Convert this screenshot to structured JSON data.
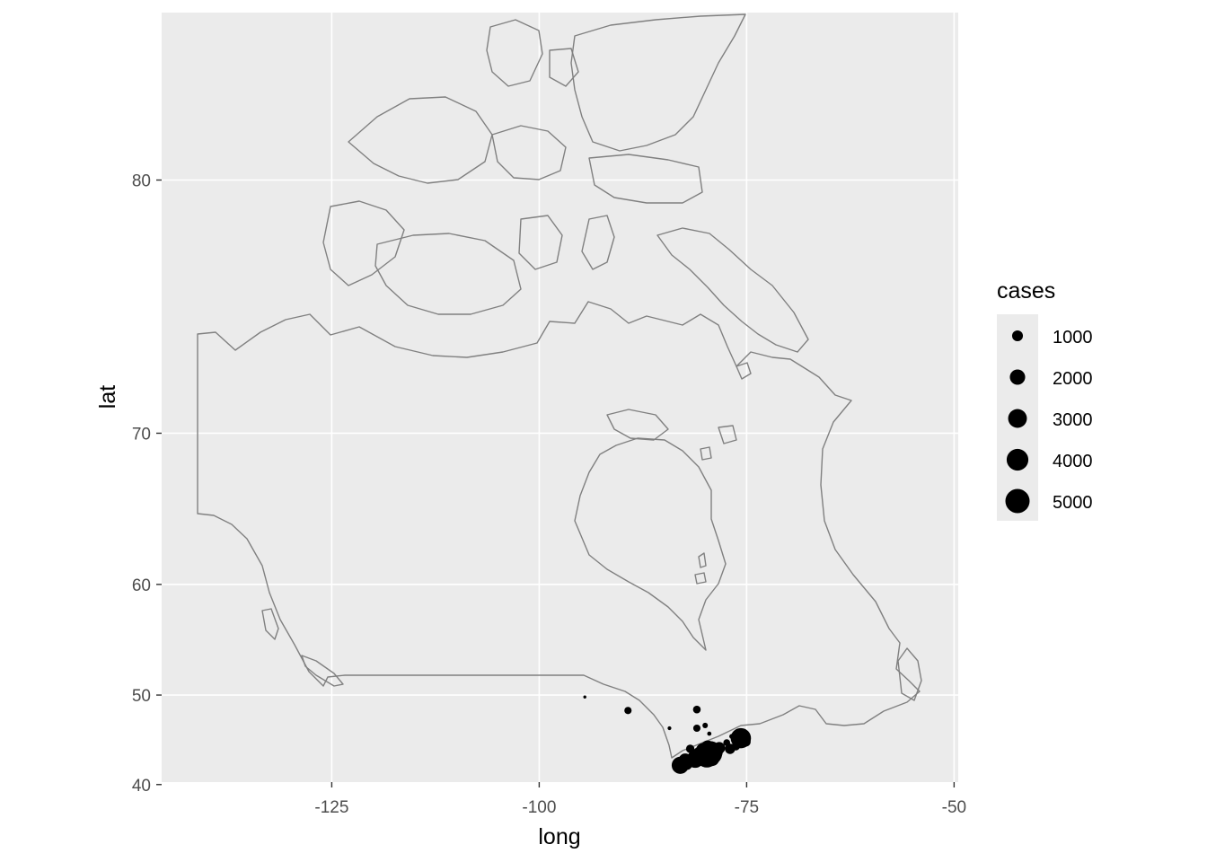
{
  "chart_data": {
    "type": "scatter",
    "xlabel": "long",
    "ylabel": "lat",
    "xlim": [
      -145.5,
      -49.5
    ],
    "ylim": [
      40.3,
      83.7
    ],
    "x_ticks": [
      -125,
      -100,
      -75,
      -50
    ],
    "x_tick_labels": [
      "-125",
      "-100",
      "-75",
      "-50"
    ],
    "y_ticks": [
      40,
      50,
      60,
      70,
      80
    ],
    "y_tick_labels": [
      "40",
      "50",
      "60",
      "70",
      "80"
    ],
    "grid": true,
    "panel_color": "#ebebeb",
    "outline_color": "#808080",
    "point_color": "#000000",
    "legend": {
      "title": "cases",
      "placement": "right",
      "values": [
        1000,
        2000,
        3000,
        4000,
        5000
      ],
      "labels": [
        "1000",
        "2000",
        "3000",
        "4000",
        "5000"
      ]
    },
    "points": [
      {
        "long": -94.5,
        "lat": 49.8,
        "cases": 80
      },
      {
        "long": -89.3,
        "lat": 48.4,
        "cases": 450
      },
      {
        "long": -84.3,
        "lat": 46.5,
        "cases": 120
      },
      {
        "long": -81.0,
        "lat": 48.5,
        "cases": 500
      },
      {
        "long": -80.0,
        "lat": 46.8,
        "cases": 250
      },
      {
        "long": -81.0,
        "lat": 46.5,
        "cases": 450
      },
      {
        "long": -79.5,
        "lat": 45.9,
        "cases": 150
      },
      {
        "long": -79.7,
        "lat": 44.4,
        "cases": 1500
      },
      {
        "long": -78.3,
        "lat": 44.3,
        "cases": 1200
      },
      {
        "long": -77.0,
        "lat": 44.2,
        "cases": 900
      },
      {
        "long": -75.7,
        "lat": 45.4,
        "cases": 3500
      },
      {
        "long": -79.4,
        "lat": 43.7,
        "cases": 5000
      },
      {
        "long": -79.8,
        "lat": 43.3,
        "cases": 4000
      },
      {
        "long": -80.5,
        "lat": 43.4,
        "cases": 3000
      },
      {
        "long": -81.2,
        "lat": 43.0,
        "cases": 2500
      },
      {
        "long": -79.2,
        "lat": 43.1,
        "cases": 2000
      },
      {
        "long": -82.4,
        "lat": 42.9,
        "cases": 1500
      },
      {
        "long": -83.0,
        "lat": 42.3,
        "cases": 2500
      },
      {
        "long": -80.3,
        "lat": 42.9,
        "cases": 1200
      },
      {
        "long": -78.9,
        "lat": 43.9,
        "cases": 2500
      },
      {
        "long": -80.2,
        "lat": 44.0,
        "cases": 2000
      },
      {
        "long": -76.3,
        "lat": 44.5,
        "cases": 600
      },
      {
        "long": -77.4,
        "lat": 44.9,
        "cases": 400
      },
      {
        "long": -76.8,
        "lat": 45.6,
        "cases": 200
      },
      {
        "long": -75.1,
        "lat": 45.0,
        "cases": 800
      },
      {
        "long": -81.8,
        "lat": 44.2,
        "cases": 600
      },
      {
        "long": -82.2,
        "lat": 42.4,
        "cases": 1000
      }
    ]
  }
}
